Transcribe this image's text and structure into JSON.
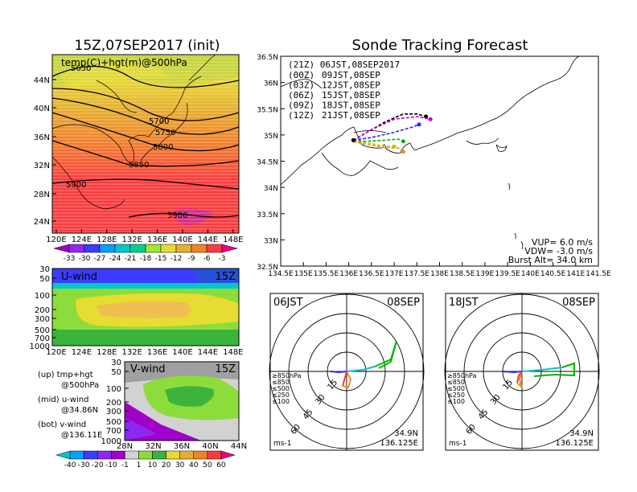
{
  "left_panel": {
    "title": "15Z,07SEP2017 (init)",
    "subtitle": "temp(C)+hgt(m)@500hPa",
    "y_ticks": [
      "44N",
      "40N",
      "36N",
      "32N",
      "28N",
      "24N"
    ],
    "x_ticks": [
      "120E",
      "124E",
      "128E",
      "132E",
      "136E",
      "140E",
      "144E",
      "148E"
    ],
    "contour_labels": [
      "5650",
      "5700",
      "5750",
      "5800",
      "5850",
      "5900",
      "5900"
    ],
    "colorbar_ticks": [
      "-33",
      "-30",
      "-27",
      "-24",
      "-21",
      "-18",
      "-15",
      "-12",
      "-9",
      "-6",
      "-3"
    ],
    "colorbar_colors": [
      "#a000c8",
      "#8c28f0",
      "#3c3cff",
      "#00a0ff",
      "#00c8c8",
      "#00d28c",
      "#a0e632",
      "#e6dc32",
      "#e6af2d",
      "#f08228",
      "#fa3c3c",
      "#f00082"
    ]
  },
  "uwind_panel": {
    "label": "U-wind",
    "time": "15Z",
    "y_ticks": [
      "30",
      "50",
      "100",
      "200",
      "300",
      "500",
      "700",
      "1000"
    ],
    "x_ticks": [
      "120E",
      "124E",
      "128E",
      "132E",
      "136E",
      "140E",
      "144E",
      "148E"
    ]
  },
  "vwind_panel": {
    "label": "V-wind",
    "time": "15Z",
    "y_ticks": [
      "30",
      "50",
      "100",
      "200",
      "300",
      "500",
      "700",
      "1000"
    ],
    "x_ticks": [
      "28N",
      "32N",
      "36N",
      "40N",
      "44N"
    ]
  },
  "legend_text": {
    "up1": "(up) tmp+hgt",
    "up2": "@500hPa",
    "mid1": "(mid) u-wind",
    "mid2": "@34.86N",
    "bot1": "(bot) v-wind",
    "bot2": "@136.11E"
  },
  "wind_colorbar": {
    "ticks": [
      "-40",
      "-30",
      "-20",
      "-10",
      "-1",
      "1",
      "10",
      "20",
      "30",
      "40",
      "50",
      "60"
    ],
    "colors": [
      "#00c8c8",
      "#00a0ff",
      "#3c3cff",
      "#8c28f0",
      "#a000c8",
      "#d2d2d2",
      "#8cdc3c",
      "#3cb43c",
      "#e6dc32",
      "#e6af2d",
      "#f08228",
      "#fa3c3c",
      "#f00082"
    ]
  },
  "map_panel": {
    "title": "Sonde Tracking Forecast",
    "y_ticks": [
      "36.5N",
      "36N",
      "35.5N",
      "35N",
      "34.5N",
      "34N",
      "33.5N",
      "33N",
      "32.5N"
    ],
    "x_ticks": [
      "134.5E",
      "135E",
      "135.5E",
      "136E",
      "136.5E",
      "137E",
      "137.5E",
      "138E",
      "138.5E",
      "139E",
      "139.5E",
      "140E",
      "140.5E",
      "141E",
      "141.5E"
    ],
    "launch_header": "(21Z)  06JST,08SEP2017",
    "launches": [
      {
        "utc": "(00Z)",
        "jst": "09JST,08SEP",
        "color": "#c800c8"
      },
      {
        "utc": "(03Z)",
        "jst": "12JST,08SEP",
        "color": "#2828f0"
      },
      {
        "utc": "(06Z)",
        "jst": "15JST,08SEP",
        "color": "#00b400"
      },
      {
        "utc": "(09Z)",
        "jst": "18JST,08SEP",
        "color": "#c8c800"
      },
      {
        "utc": "(12Z)",
        "jst": "21JST,08SEP",
        "color": "#f08c28"
      }
    ],
    "params": [
      "VUP=  6.0  m/s",
      "VDW= -3.0  m/s",
      "Burst Alt=  34.0  km"
    ]
  },
  "polar_left": {
    "time": "06JST",
    "date": "08SEP",
    "ring_labels": [
      "15",
      "30",
      "45",
      "60"
    ],
    "levels": [
      "≥850hPa",
      "≤850",
      "≤500",
      "≤250",
      "≤100"
    ],
    "level_colors": [
      "#f03c28",
      "#f08c28",
      "#00b400",
      "#00c8c8",
      "#2828f0"
    ],
    "unit": "ms-1",
    "lat": "34.9N",
    "lon": "136.125E"
  },
  "polar_right": {
    "time": "18JST",
    "date": "08SEP",
    "ring_labels": [
      "15",
      "30",
      "45",
      "60"
    ],
    "levels": [
      "≥850hPa",
      "≤850",
      "≤500",
      "≤250",
      "≤100"
    ],
    "level_colors": [
      "#f03c28",
      "#f08c28",
      "#00b400",
      "#00c8c8",
      "#2828f0"
    ],
    "unit": "ms-1",
    "lat": "34.9N",
    "lon": "136.125E"
  },
  "chart_data": [
    {
      "type": "heatmap",
      "title": "15Z,07SEP2017 (init)",
      "subtitle": "temp(C)+hgt(m)@500hPa",
      "x_range": [
        "120E",
        "150E"
      ],
      "y_range": [
        "22N",
        "47N"
      ],
      "contour_levels_m": [
        5650,
        5700,
        5750,
        5800,
        5850,
        5900
      ]
    },
    {
      "type": "heatmap",
      "title": "U-wind",
      "x_range": [
        "120E",
        "150E"
      ],
      "y_levels_hPa": [
        30,
        50,
        100,
        200,
        300,
        500,
        700,
        1000
      ]
    },
    {
      "type": "heatmap",
      "title": "V-wind",
      "x_range": [
        "28N",
        "44N"
      ],
      "y_levels_hPa": [
        30,
        50,
        100,
        200,
        300,
        500,
        700,
        1000
      ]
    },
    {
      "type": "line",
      "title": "Sonde Tracking Forecast",
      "xlim": [
        134.5,
        141.5
      ],
      "ylim": [
        32.5,
        36.5
      ],
      "series": [
        {
          "name": "(21Z) 06JST,08SEP2017",
          "color": "#000000",
          "lon": [
            136.1,
            136.4,
            136.8,
            137.2,
            137.5,
            137.7
          ],
          "lat": [
            34.9,
            35.05,
            35.25,
            35.4,
            35.4,
            35.35
          ]
        },
        {
          "name": "(00Z) 09JST,08SEP",
          "color": "#c800c8",
          "lon": [
            136.1,
            136.5,
            137.0,
            137.5,
            137.8
          ],
          "lat": [
            34.9,
            35.1,
            35.3,
            35.35,
            35.3
          ]
        },
        {
          "name": "(03Z) 12JST,08SEP",
          "color": "#2828f0",
          "lon": [
            136.1,
            136.5,
            137.0,
            137.4,
            137.55
          ],
          "lat": [
            34.9,
            34.95,
            35.05,
            35.15,
            35.2
          ]
        },
        {
          "name": "(06Z) 15JST,08SEP",
          "color": "#00b400",
          "lon": [
            136.1,
            136.4,
            136.8,
            137.1,
            137.2
          ],
          "lat": [
            34.88,
            34.88,
            34.9,
            34.92,
            34.88
          ]
        },
        {
          "name": "(09Z) 18JST,08SEP",
          "color": "#c8c800",
          "lon": [
            136.1,
            136.4,
            136.7,
            137.0
          ],
          "lat": [
            34.87,
            34.85,
            34.8,
            34.78
          ]
        },
        {
          "name": "(12Z) 21JST,08SEP",
          "color": "#f08c28",
          "lon": [
            136.1,
            136.4,
            136.8,
            137.1,
            137.2
          ],
          "lat": [
            34.87,
            34.82,
            34.76,
            34.75,
            34.68
          ]
        }
      ]
    }
  ]
}
